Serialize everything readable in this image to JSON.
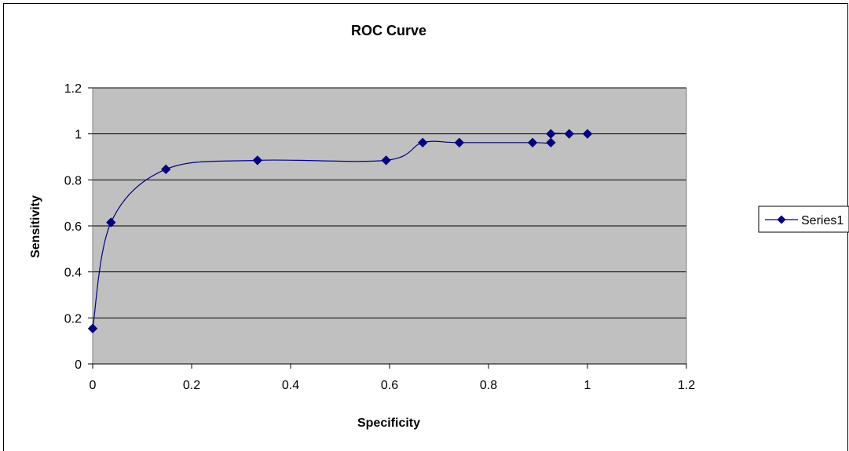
{
  "chart_data": {
    "type": "line",
    "title": "ROC Curve",
    "xlabel": "Specificity",
    "ylabel": "Sensitivity",
    "xlim": [
      0,
      1.2
    ],
    "ylim": [
      0,
      1.2
    ],
    "x_ticks": [
      "0",
      "0.2",
      "0.4",
      "0.6",
      "0.8",
      "1",
      "1.2"
    ],
    "y_ticks": [
      "0",
      "0.2",
      "0.4",
      "0.6",
      "0.8",
      "1",
      "1.2"
    ],
    "grid": "horizontal",
    "plot_background": "#c0c0c0",
    "legend_position": "right",
    "series": [
      {
        "name": "Series1",
        "color": "#000080",
        "marker": "diamond",
        "smooth": true,
        "points": [
          {
            "x": 0,
            "y": 0.154
          },
          {
            "x": 0.037,
            "y": 0.615
          },
          {
            "x": 0.148,
            "y": 0.846
          },
          {
            "x": 0.333,
            "y": 0.885
          },
          {
            "x": 0.593,
            "y": 0.885
          },
          {
            "x": 0.667,
            "y": 0.962
          },
          {
            "x": 0.741,
            "y": 0.962
          },
          {
            "x": 0.889,
            "y": 0.962
          },
          {
            "x": 0.926,
            "y": 0.962
          },
          {
            "x": 0.926,
            "y": 1.0
          },
          {
            "x": 0.963,
            "y": 1.0
          },
          {
            "x": 1.0,
            "y": 1.0
          }
        ]
      }
    ]
  }
}
